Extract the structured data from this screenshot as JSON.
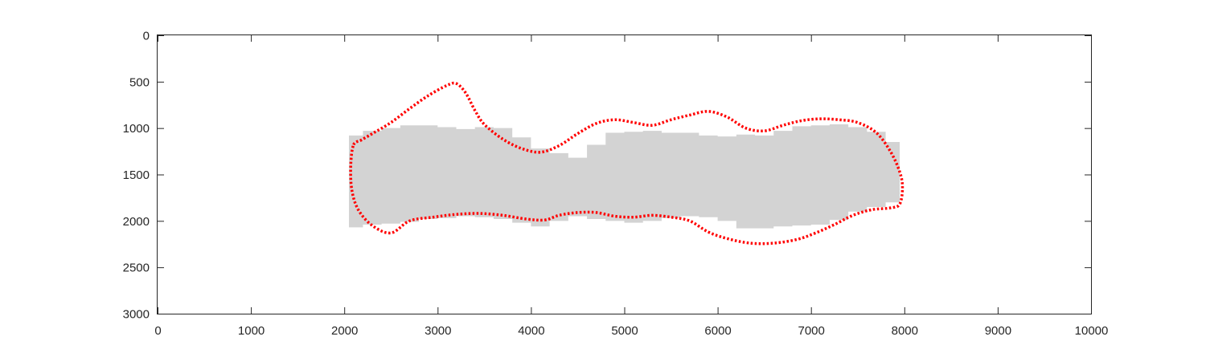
{
  "chart_data": {
    "type": "area",
    "title": "",
    "xlabel": "",
    "ylabel": "",
    "xlim": [
      0,
      10000
    ],
    "ylim": [
      0,
      3000
    ],
    "y_reversed": true,
    "grid": false,
    "box": true,
    "x_ticks": [
      0,
      1000,
      2000,
      3000,
      4000,
      5000,
      6000,
      7000,
      8000,
      9000,
      10000
    ],
    "y_ticks": [
      0,
      500,
      1000,
      1500,
      2000,
      2500,
      3000
    ],
    "series": [
      {
        "kind": "filled-region",
        "color": "#d3d3d3",
        "x": [
          2050,
          2200,
          2400,
          2600,
          2800,
          3000,
          3200,
          3400,
          3600,
          3800,
          4000,
          4200,
          4400,
          4600,
          4800,
          5000,
          5200,
          5400,
          5600,
          5800,
          6000,
          6200,
          6400,
          6600,
          6800,
          7000,
          7200,
          7400,
          7600,
          7800,
          7950
        ],
        "top": [
          1080,
          1030,
          1000,
          970,
          970,
          990,
          1010,
          990,
          1000,
          1100,
          1220,
          1270,
          1320,
          1180,
          1050,
          1040,
          1030,
          1050,
          1050,
          1080,
          1090,
          1070,
          1080,
          1030,
          980,
          970,
          960,
          990,
          1040,
          1150,
          1350
        ],
        "bottom": [
          2080,
          2070,
          2040,
          2030,
          2010,
          1980,
          1970,
          1950,
          1960,
          1980,
          2020,
          2060,
          2000,
          1950,
          1980,
          2000,
          2020,
          2000,
          1970,
          1950,
          1960,
          2000,
          2080,
          2080,
          2060,
          2050,
          2040,
          1990,
          1900,
          1850,
          1800
        ]
      },
      {
        "kind": "contour",
        "color": "#ff0000",
        "style": "dotted",
        "x": [
          2100,
          2180,
          2300,
          2500,
          2700,
          2900,
          3100,
          3200,
          3300,
          3400,
          3500,
          3700,
          3900,
          4100,
          4300,
          4500,
          4700,
          4900,
          5100,
          5300,
          5500,
          5700,
          5900,
          6100,
          6300,
          6500,
          6700,
          6900,
          7100,
          7300,
          7500,
          7700,
          7850,
          7950,
          7980,
          7950,
          7850,
          7650,
          7450,
          7250,
          7050,
          6850,
          6600,
          6350,
          6100,
          5900,
          5700,
          5500,
          5300,
          5100,
          4900,
          4700,
          4500,
          4300,
          4150,
          3950,
          3700,
          3450,
          3200,
          2950,
          2700,
          2500,
          2300,
          2150,
          2080,
          2070,
          2100
        ],
        "y": [
          1180,
          1130,
          1060,
          940,
          790,
          650,
          540,
          520,
          620,
          810,
          960,
          1120,
          1220,
          1260,
          1190,
          1060,
          950,
          910,
          940,
          970,
          910,
          860,
          820,
          880,
          1000,
          1030,
          970,
          920,
          900,
          910,
          940,
          1050,
          1250,
          1470,
          1640,
          1820,
          1860,
          1880,
          1940,
          2040,
          2130,
          2200,
          2240,
          2240,
          2190,
          2120,
          2000,
          1960,
          1940,
          1960,
          1950,
          1910,
          1910,
          1940,
          1990,
          1980,
          1940,
          1920,
          1930,
          1960,
          2000,
          2130,
          2050,
          1880,
          1660,
          1390,
          1180
        ]
      }
    ]
  }
}
